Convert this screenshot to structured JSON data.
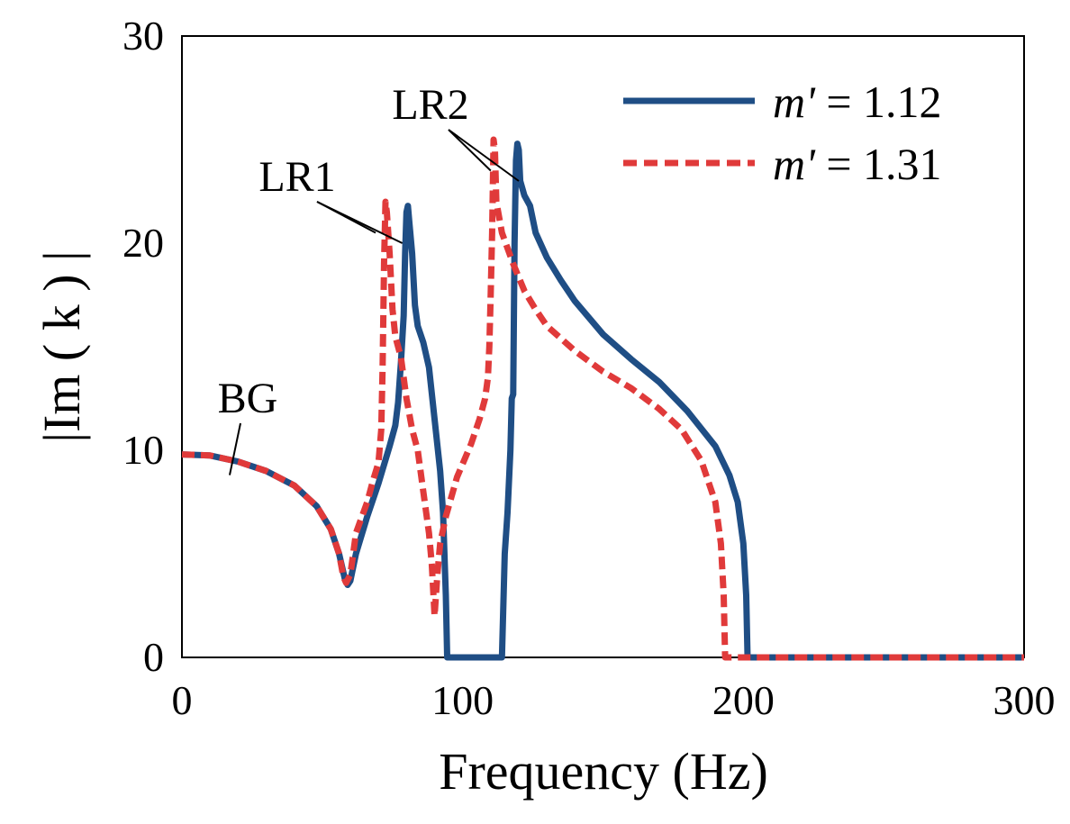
{
  "chart_data": {
    "type": "line",
    "title": "",
    "xlabel": "Frequency (Hz)",
    "ylabel": "|Im ( k ) |",
    "xlim": [
      0,
      300
    ],
    "ylim": [
      0,
      30
    ],
    "xticks": [
      0,
      100,
      200,
      300
    ],
    "yticks": [
      0,
      10,
      20,
      30
    ],
    "grid": false,
    "legend_position": "top-right",
    "series": [
      {
        "name_var": "m'",
        "name_rest": " = 1.12",
        "color": "#1f4e85",
        "style": "solid",
        "points": [
          [
            0,
            9.8
          ],
          [
            10,
            9.75
          ],
          [
            20,
            9.45
          ],
          [
            30,
            9.0
          ],
          [
            40,
            8.3
          ],
          [
            48,
            7.3
          ],
          [
            53,
            6.2
          ],
          [
            56,
            5.0
          ],
          [
            58,
            3.8
          ],
          [
            59,
            3.5
          ],
          [
            60,
            3.7
          ],
          [
            62,
            5.0
          ],
          [
            66,
            6.8
          ],
          [
            70,
            8.4
          ],
          [
            74,
            10.2
          ],
          [
            76,
            11.2
          ],
          [
            77,
            12.3
          ],
          [
            78,
            14.2
          ],
          [
            79,
            16.5
          ],
          [
            79.5,
            19.5
          ],
          [
            80,
            21.5
          ],
          [
            80.5,
            21.8
          ],
          [
            81,
            21.0
          ],
          [
            82,
            19.5
          ],
          [
            83,
            17.0
          ],
          [
            84,
            16.0
          ],
          [
            86,
            15.2
          ],
          [
            88,
            14.0
          ],
          [
            90,
            11.5
          ],
          [
            92,
            9.0
          ],
          [
            93,
            7.0
          ],
          [
            94,
            3.0
          ],
          [
            94.5,
            0
          ],
          [
            114,
            0
          ],
          [
            115,
            5.0
          ],
          [
            116,
            7.0
          ],
          [
            117,
            10.0
          ],
          [
            117.5,
            12.5
          ],
          [
            118,
            12.7
          ],
          [
            118.5,
            20.0
          ],
          [
            119,
            24.0
          ],
          [
            119.5,
            24.8
          ],
          [
            120,
            24.5
          ],
          [
            120.5,
            23.0
          ],
          [
            122,
            22.3
          ],
          [
            124,
            21.8
          ],
          [
            126,
            20.5
          ],
          [
            130,
            19.3
          ],
          [
            135,
            18.2
          ],
          [
            140,
            17.2
          ],
          [
            150,
            15.6
          ],
          [
            160,
            14.4
          ],
          [
            170,
            13.3
          ],
          [
            180,
            11.9
          ],
          [
            190,
            10.2
          ],
          [
            195,
            8.8
          ],
          [
            198,
            7.5
          ],
          [
            200,
            5.5
          ],
          [
            201,
            3.0
          ],
          [
            201.5,
            0
          ],
          [
            300,
            0
          ]
        ]
      },
      {
        "name_var": "m'",
        "name_rest": " = 1.31",
        "color": "#e03a3a",
        "style": "dashed",
        "points": [
          [
            0,
            9.8
          ],
          [
            10,
            9.75
          ],
          [
            20,
            9.45
          ],
          [
            30,
            9.0
          ],
          [
            40,
            8.3
          ],
          [
            48,
            7.3
          ],
          [
            53,
            6.2
          ],
          [
            56,
            5.0
          ],
          [
            57.5,
            3.9
          ],
          [
            58.5,
            3.6
          ],
          [
            60,
            4.0
          ],
          [
            62,
            6.0
          ],
          [
            66,
            7.5
          ],
          [
            68,
            8.5
          ],
          [
            70,
            9.4
          ],
          [
            71,
            11.0
          ],
          [
            71.5,
            14.0
          ],
          [
            72,
            19.0
          ],
          [
            72.5,
            22.0
          ],
          [
            73,
            21.5
          ],
          [
            74,
            19.5
          ],
          [
            75,
            16.8
          ],
          [
            76,
            15.5
          ],
          [
            78,
            14.5
          ],
          [
            80,
            12.5
          ],
          [
            82,
            11.0
          ],
          [
            84,
            10.0
          ],
          [
            86,
            8.0
          ],
          [
            88,
            6.0
          ],
          [
            89,
            4.5
          ],
          [
            90,
            2.0
          ],
          [
            91,
            4.0
          ],
          [
            92,
            5.5
          ],
          [
            94,
            6.8
          ],
          [
            98,
            8.7
          ],
          [
            103,
            10.3
          ],
          [
            106,
            11.5
          ],
          [
            107,
            12.0
          ],
          [
            108,
            12.5
          ],
          [
            109,
            13.5
          ],
          [
            109.5,
            15.0
          ],
          [
            110,
            17.5
          ],
          [
            110.5,
            20.5
          ],
          [
            111,
            25.0
          ],
          [
            111.5,
            24.5
          ],
          [
            112,
            22.0
          ],
          [
            114,
            20.5
          ],
          [
            118,
            19.0
          ],
          [
            122,
            17.7
          ],
          [
            126,
            16.8
          ],
          [
            130,
            16.0
          ],
          [
            140,
            14.8
          ],
          [
            150,
            13.8
          ],
          [
            160,
            13.0
          ],
          [
            170,
            12.0
          ],
          [
            178,
            11.0
          ],
          [
            185,
            9.5
          ],
          [
            190,
            7.5
          ],
          [
            192,
            5.5
          ],
          [
            193,
            3.0
          ],
          [
            193.5,
            0
          ],
          [
            300,
            0
          ]
        ]
      }
    ],
    "annotations": [
      {
        "text": "LR1",
        "target_points": [
          [
            69,
            20.5
          ],
          [
            78.5,
            20.0
          ]
        ]
      },
      {
        "text": "LR2",
        "target_points": [
          [
            110,
            23.5
          ],
          [
            120,
            23.0
          ]
        ]
      },
      {
        "text": "BG",
        "target_points": [
          [
            17,
            8.8
          ]
        ]
      }
    ]
  }
}
